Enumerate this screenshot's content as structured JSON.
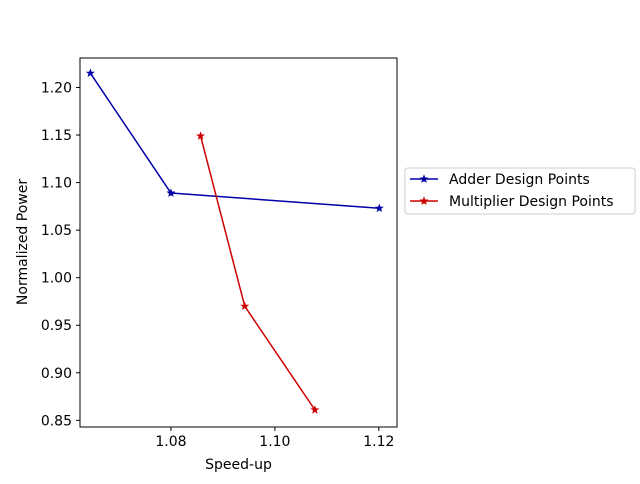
{
  "chart_data": {
    "type": "line",
    "title": "",
    "xlabel": "Speed-up",
    "ylabel": "Normalized Power",
    "xlim": [
      1.0625,
      1.1235
    ],
    "ylim": [
      0.843,
      1.231
    ],
    "xticks": [
      1.08,
      1.1,
      1.12
    ],
    "xtick_labels": [
      "1.08",
      "1.10",
      "1.12"
    ],
    "yticks": [
      0.85,
      0.9,
      0.95,
      1.0,
      1.05,
      1.1,
      1.15,
      1.2
    ],
    "ytick_labels": [
      "0.85",
      "0.90",
      "0.95",
      "1.00",
      "1.05",
      "1.10",
      "1.15",
      "1.20"
    ],
    "grid": false,
    "legend_position": "right, outside plot area",
    "marker": "star",
    "series": [
      {
        "name": "Adder Design Points",
        "color": "#0000aa",
        "x": [
          1.0645,
          1.08,
          1.1201
        ],
        "y": [
          1.215,
          1.089,
          1.073
        ]
      },
      {
        "name": "Multiplier Design Points",
        "color": "#cc0000",
        "x": [
          1.0857,
          1.0942,
          1.1077
        ],
        "y": [
          1.149,
          0.97,
          0.861
        ]
      }
    ]
  }
}
